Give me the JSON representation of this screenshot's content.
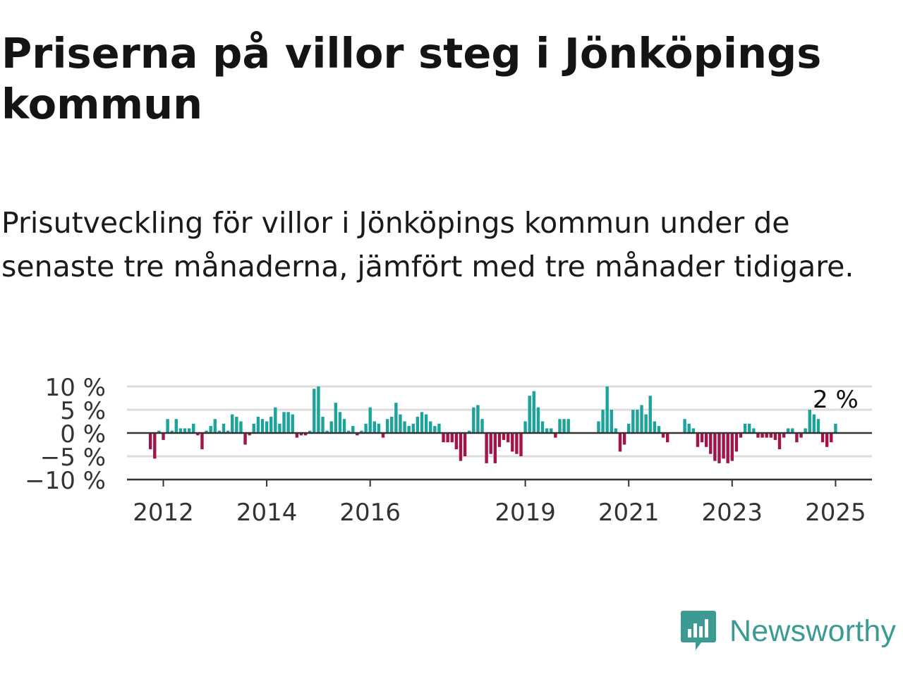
{
  "title": "Priserna på villor steg i Jönköpings kommun",
  "subtitle": "Prisutveckling för villor i Jönköpings kommun under de senaste tre månaderna, jämfört med tre månader tidigare.",
  "brand": {
    "name": "Newsworthy",
    "color": "#3b9b93",
    "icon": "newsworthy-logo-icon"
  },
  "chart_data": {
    "type": "bar",
    "title": "",
    "xlabel": "",
    "ylabel": "",
    "unit": "%",
    "ylim": [
      -10,
      10
    ],
    "y_ticks": [
      10,
      5,
      0,
      -5,
      -10
    ],
    "y_tick_labels": [
      "10 %",
      "5 %",
      "0 %",
      "−5 %",
      "−10 %"
    ],
    "x_ticks": [
      2012,
      2014,
      2016,
      2019,
      2021,
      2023,
      2025
    ],
    "x_tick_labels": [
      "2012",
      "2014",
      "2016",
      "2019",
      "2021",
      "2023",
      "2025"
    ],
    "grid": true,
    "colors": {
      "positive": "#1ba39c",
      "negative": "#a3154a",
      "zero_line": "#333333",
      "grid": "#dddddd"
    },
    "period_start": "2011-10",
    "frequency": "monthly",
    "last_value_label": "2 %",
    "values": [
      -3.5,
      -5.5,
      0.5,
      -1.5,
      3,
      0.5,
      3,
      1,
      1,
      1,
      2,
      -0.5,
      -3.5,
      0.5,
      1.5,
      3,
      0.5,
      2,
      0.5,
      4,
      3.5,
      2.5,
      -2.5,
      -0.5,
      2,
      3.5,
      3,
      2.5,
      3.5,
      5.5,
      2,
      4.5,
      4.5,
      4,
      -1,
      -0.5,
      -0.5,
      0.5,
      9.5,
      10,
      3.5,
      0.5,
      2.5,
      6.5,
      4.5,
      3,
      0.5,
      1.5,
      -0.5,
      0.5,
      2,
      5.5,
      2.5,
      2,
      -1,
      3,
      3.5,
      6.5,
      4,
      2.5,
      1.5,
      2,
      3.5,
      4.5,
      4,
      2.5,
      1.5,
      2,
      -2,
      -2,
      -2,
      -3.5,
      -6,
      -5,
      0.5,
      5.5,
      6,
      3,
      -6.5,
      -4.5,
      -6.5,
      -3,
      -1.5,
      -2,
      -4,
      -4.5,
      -5,
      2.5,
      8,
      9,
      5.5,
      2.5,
      1,
      1,
      -1,
      3,
      3,
      3,
      0,
      0,
      0,
      0,
      0,
      0,
      2.5,
      5,
      10,
      5,
      1,
      -4,
      -2.5,
      2,
      5,
      5,
      6,
      4,
      8,
      2.5,
      1.5,
      -1,
      -2,
      0,
      0,
      0,
      3,
      2,
      1,
      -3,
      -2,
      -3,
      -4.5,
      -6,
      -6.5,
      -5.5,
      -6.5,
      -6,
      -4,
      -1,
      2,
      2,
      1,
      -1,
      -1,
      -1,
      -1,
      -1.5,
      -3.5,
      -1,
      1,
      1,
      -2,
      -1,
      1,
      5,
      4,
      3,
      -2,
      -3,
      -2,
      2
    ]
  }
}
